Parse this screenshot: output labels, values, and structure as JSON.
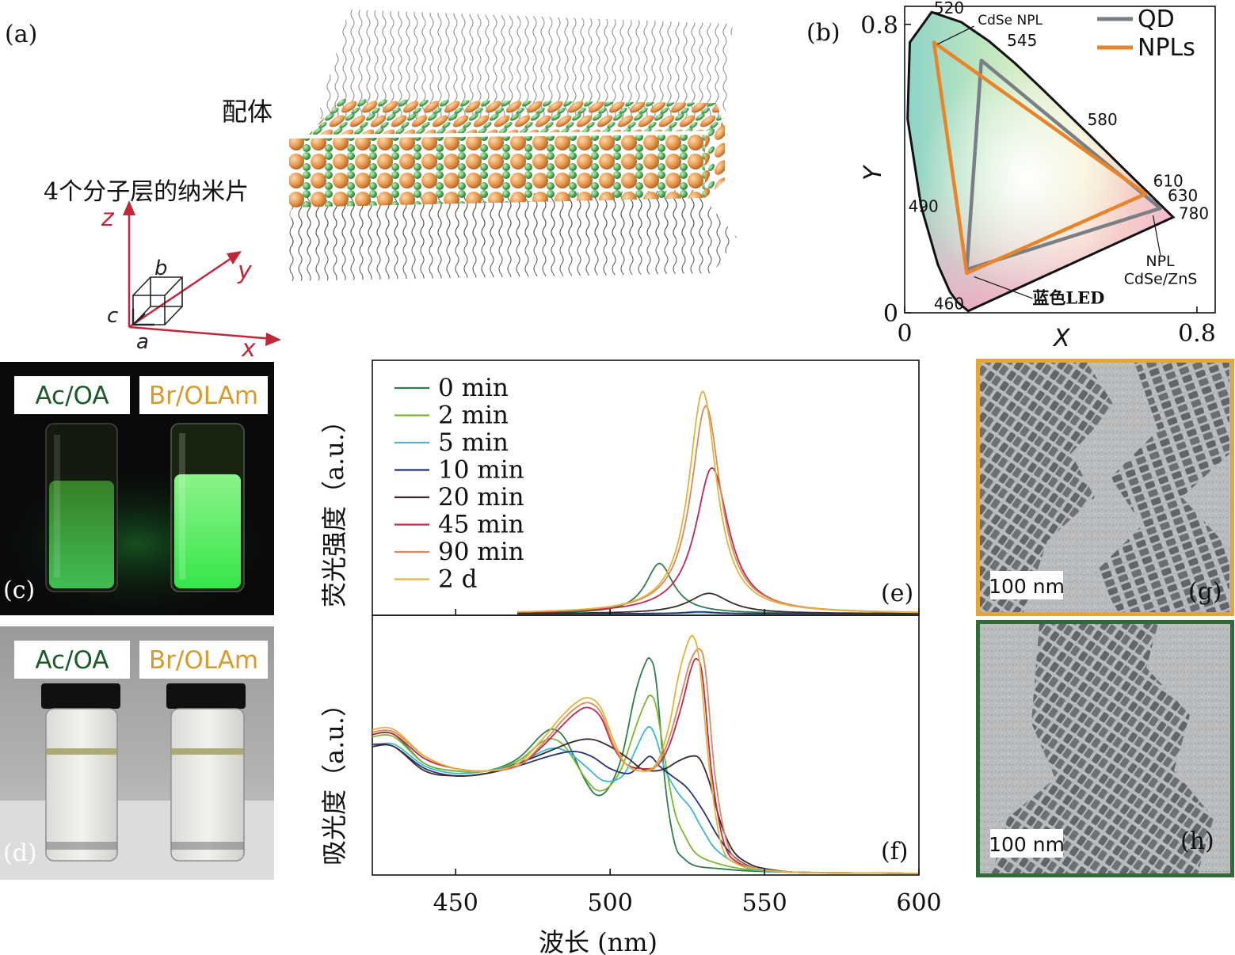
{
  "panel_labels": {
    "a": "(a)",
    "b": "(b)",
    "c": "(c)",
    "d": "(d)",
    "e": "(e)",
    "f": "(f)",
    "g": "(g)",
    "h": "(h)"
  },
  "panel_a": {
    "ligand_label": "配体",
    "nanoplatelet_label": "4个分子层的纳米片",
    "axes": {
      "z": "z",
      "y": "y",
      "x": "x",
      "a": "a",
      "b": "b",
      "c": "c"
    }
  },
  "panel_c": {
    "left_tag": "Ac/OA",
    "right_tag": "Br/OLAm"
  },
  "panel_d": {
    "left_tag": "Ac/OA",
    "right_tag": "Br/OLAm"
  },
  "panel_g": {
    "scale_bar": "100 nm"
  },
  "panel_h": {
    "scale_bar": "100 nm"
  },
  "colors": {
    "cie_qd": "#7a7f86",
    "cie_npl": "#e8842a",
    "tem_g_frame": "#e6a634",
    "tem_h_frame": "#2f6b35",
    "vial_tag_ac": "#1d5a2a",
    "vial_tag_br": "#d79a2c",
    "atom_cd": "#e8a055",
    "atom_se": "#55b060"
  },
  "chart_data": [
    {
      "id": "cie-diagram",
      "type": "scatter",
      "xlabel": "X",
      "ylabel": "Y",
      "xlim": [
        0,
        0.85
      ],
      "ylim": [
        0,
        0.85
      ],
      "x_ticks": [
        "0",
        "0.8"
      ],
      "y_ticks": [
        "0",
        "0.8"
      ],
      "locus_labels": [
        "520",
        "545",
        "580",
        "610",
        "630",
        "780",
        "490",
        "460"
      ],
      "annotations": [
        "CdSe NPL",
        "NPL",
        "CdSe/ZnS",
        "蓝色LED"
      ],
      "legend": {
        "position": "top-right",
        "entries": [
          "QD",
          "NPLs"
        ]
      },
      "series": [
        {
          "name": "QD",
          "points": [
            [
              0.21,
              0.7
            ],
            [
              0.7,
              0.29
            ],
            [
              0.17,
              0.12
            ]
          ]
        },
        {
          "name": "NPLs",
          "points": [
            [
              0.08,
              0.75
            ],
            [
              0.66,
              0.33
            ],
            [
              0.17,
              0.11
            ]
          ]
        }
      ]
    },
    {
      "id": "pl-spectra",
      "type": "line",
      "ylabel": "荧光强度（a.u.）",
      "xlim": [
        423,
        600
      ],
      "ylim": [
        0,
        1.0
      ],
      "legend": {
        "position": "top-left"
      },
      "series": [
        {
          "name": "0 min",
          "color": "#2e7d4f",
          "peak": 516,
          "height": 0.21,
          "width": 5.5
        },
        {
          "name": "2 min",
          "color": "#7ab82e",
          "peak": 529,
          "height": 0.005,
          "width": 6
        },
        {
          "name": "5 min",
          "color": "#3db7d6",
          "peak": 529,
          "height": 0.005,
          "width": 6
        },
        {
          "name": "10 min",
          "color": "#26337a",
          "peak": 529,
          "height": 0.008,
          "width": 6
        },
        {
          "name": "20 min",
          "color": "#3a2a2a",
          "peak": 532,
          "height": 0.085,
          "width": 8
        },
        {
          "name": "45 min",
          "color": "#c0284d",
          "peak": 533,
          "height": 0.61,
          "width": 6.5
        },
        {
          "name": "90 min",
          "color": "#d98a5a",
          "peak": 531,
          "height": 0.87,
          "width": 5.8
        },
        {
          "name": "2 d",
          "color": "#e0b43c",
          "peak": 530,
          "height": 0.93,
          "width": 5.5
        }
      ]
    },
    {
      "id": "absorption-spectra",
      "type": "line",
      "xlabel": "波长 (nm)",
      "ylabel": "吸光度（a.u.）",
      "xlim": [
        423,
        600
      ],
      "x_ticks": [
        450,
        500,
        550,
        600
      ],
      "ylim": [
        0,
        1.0
      ],
      "series": [
        {
          "name": "0 min",
          "color": "#2e7d4f",
          "x": [
            423,
            430,
            440,
            450,
            460,
            470,
            478,
            482,
            486,
            492,
            496,
            500,
            504,
            508,
            511,
            513,
            515,
            518,
            521,
            524,
            528,
            535,
            545,
            560,
            580,
            600
          ],
          "y": [
            0.57,
            0.57,
            0.45,
            0.42,
            0.42,
            0.47,
            0.57,
            0.59,
            0.54,
            0.38,
            0.32,
            0.36,
            0.49,
            0.73,
            0.85,
            0.88,
            0.78,
            0.35,
            0.12,
            0.06,
            0.03,
            0.02,
            0.01,
            0.005,
            0.002,
            0.0
          ]
        },
        {
          "name": "2 min",
          "color": "#7ab82e",
          "x": [
            423,
            430,
            440,
            450,
            460,
            470,
            478,
            482,
            486,
            492,
            496,
            500,
            504,
            508,
            511,
            513,
            515,
            518,
            521,
            524,
            528,
            535,
            545,
            560,
            580,
            600
          ],
          "y": [
            0.56,
            0.56,
            0.45,
            0.42,
            0.42,
            0.46,
            0.54,
            0.55,
            0.51,
            0.39,
            0.34,
            0.36,
            0.44,
            0.59,
            0.69,
            0.73,
            0.68,
            0.45,
            0.25,
            0.16,
            0.08,
            0.04,
            0.015,
            0.005,
            0.002,
            0.0
          ]
        },
        {
          "name": "5 min",
          "color": "#3db7d6",
          "x": [
            423,
            430,
            440,
            450,
            460,
            470,
            480,
            486,
            492,
            498,
            504,
            508,
            511,
            513,
            515,
            518,
            522,
            526,
            530,
            535,
            545,
            560,
            580,
            600
          ],
          "y": [
            0.52,
            0.53,
            0.44,
            0.41,
            0.42,
            0.45,
            0.51,
            0.5,
            0.44,
            0.38,
            0.4,
            0.5,
            0.58,
            0.6,
            0.55,
            0.42,
            0.33,
            0.27,
            0.18,
            0.09,
            0.02,
            0.005,
            0.002,
            0.0
          ]
        },
        {
          "name": "10 min",
          "color": "#26337a",
          "x": [
            423,
            430,
            440,
            450,
            460,
            470,
            480,
            488,
            494,
            500,
            506,
            510,
            513,
            516,
            520,
            525,
            530,
            535,
            540,
            545,
            550,
            560,
            580,
            600
          ],
          "y": [
            0.53,
            0.52,
            0.43,
            0.4,
            0.41,
            0.44,
            0.48,
            0.5,
            0.48,
            0.43,
            0.41,
            0.45,
            0.48,
            0.44,
            0.4,
            0.35,
            0.26,
            0.15,
            0.07,
            0.03,
            0.015,
            0.005,
            0.002,
            0.0
          ]
        },
        {
          "name": "20 min",
          "color": "#3a2a2a",
          "x": [
            423,
            430,
            440,
            450,
            460,
            470,
            480,
            488,
            494,
            500,
            506,
            510,
            514,
            518,
            522,
            526,
            529,
            532,
            536,
            540,
            545,
            550,
            560,
            580,
            600
          ],
          "y": [
            0.52,
            0.52,
            0.42,
            0.4,
            0.41,
            0.45,
            0.5,
            0.54,
            0.55,
            0.52,
            0.47,
            0.43,
            0.42,
            0.43,
            0.46,
            0.48,
            0.47,
            0.38,
            0.2,
            0.09,
            0.04,
            0.02,
            0.005,
            0.002,
            0.0
          ]
        },
        {
          "name": "45 min",
          "color": "#c0284d",
          "x": [
            423,
            430,
            440,
            450,
            460,
            470,
            478,
            484,
            489,
            493,
            497,
            501,
            505,
            510,
            515,
            519,
            523,
            526,
            528,
            530,
            533,
            537,
            542,
            550,
            560,
            580,
            600
          ],
          "y": [
            0.57,
            0.57,
            0.47,
            0.43,
            0.42,
            0.44,
            0.52,
            0.6,
            0.66,
            0.68,
            0.64,
            0.52,
            0.45,
            0.43,
            0.44,
            0.52,
            0.68,
            0.83,
            0.88,
            0.8,
            0.4,
            0.12,
            0.04,
            0.015,
            0.005,
            0.002,
            0.0
          ]
        },
        {
          "name": "90 min",
          "color": "#d98a5a",
          "x": [
            423,
            430,
            440,
            450,
            460,
            470,
            478,
            484,
            489,
            493,
            497,
            501,
            505,
            510,
            515,
            519,
            523,
            526,
            529,
            531,
            534,
            538,
            543,
            550,
            560,
            580,
            600
          ],
          "y": [
            0.58,
            0.58,
            0.48,
            0.43,
            0.42,
            0.44,
            0.53,
            0.62,
            0.68,
            0.7,
            0.66,
            0.53,
            0.45,
            0.42,
            0.44,
            0.55,
            0.73,
            0.87,
            0.92,
            0.82,
            0.4,
            0.12,
            0.04,
            0.015,
            0.005,
            0.002,
            0.0
          ]
        },
        {
          "name": "2 d",
          "color": "#e0b43c",
          "x": [
            423,
            430,
            440,
            450,
            460,
            470,
            478,
            484,
            489,
            493,
            497,
            501,
            505,
            510,
            515,
            519,
            522,
            525,
            527,
            529,
            532,
            536,
            541,
            550,
            560,
            580,
            600
          ],
          "y": [
            0.59,
            0.59,
            0.48,
            0.43,
            0.42,
            0.45,
            0.55,
            0.64,
            0.7,
            0.72,
            0.68,
            0.55,
            0.45,
            0.42,
            0.45,
            0.6,
            0.8,
            0.94,
            0.97,
            0.86,
            0.45,
            0.12,
            0.04,
            0.015,
            0.005,
            0.002,
            0.0
          ]
        }
      ]
    }
  ]
}
